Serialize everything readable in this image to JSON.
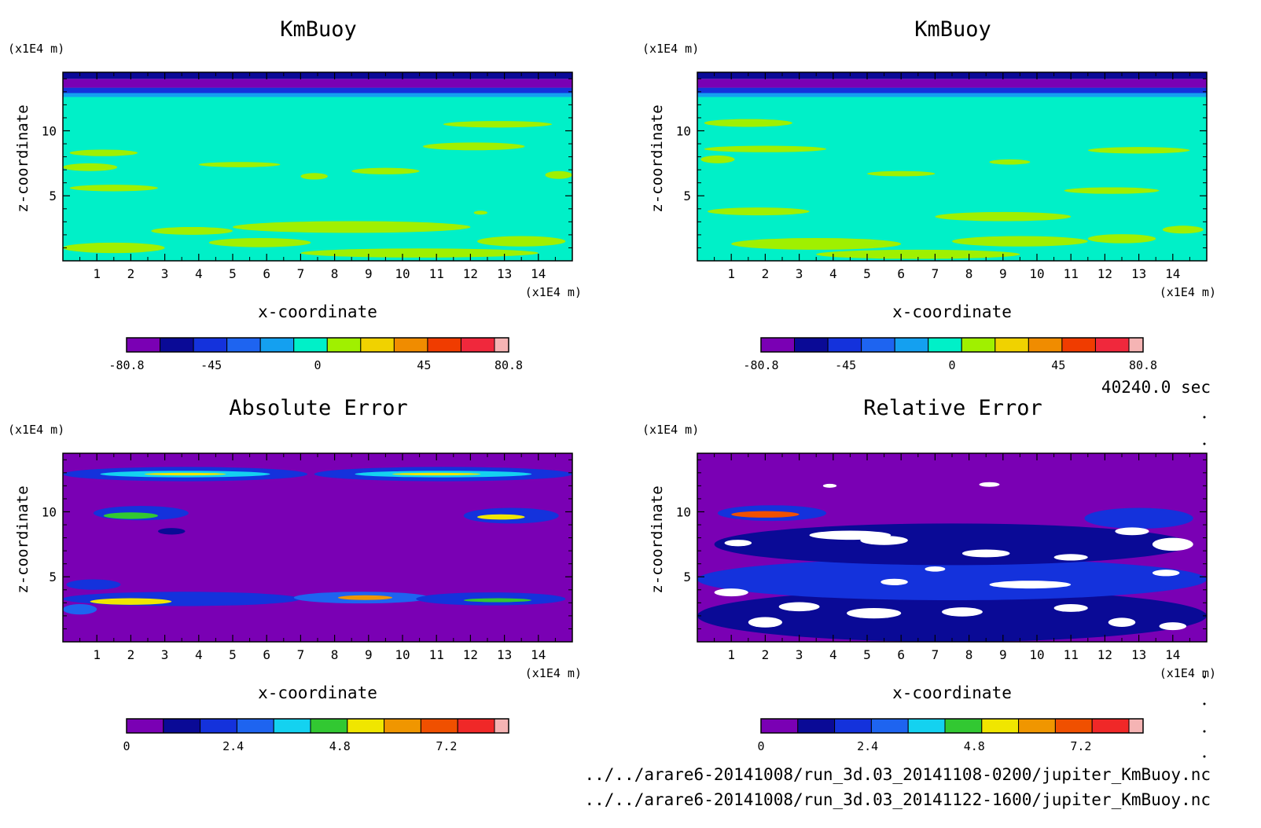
{
  "time_label": "40240.0 sec",
  "file_paths": [
    "../../arare6-20141008/run_3d.03_20141108-0200/jupiter_KmBuoy.nc",
    "../../arare6-20141008/run_3d.03_20141122-1600/jupiter_KmBuoy.nc"
  ],
  "chart_data": [
    {
      "type": "heatmap",
      "title": "KmBuoy",
      "xlabel": "x-coordinate",
      "ylabel": "z-coordinate",
      "x_unit": "(x1E4 m)",
      "y_unit": "(x1E4 m)",
      "xlim": [
        0,
        15
      ],
      "ylim": [
        0,
        14.5
      ],
      "x_ticks": [
        1,
        2,
        3,
        4,
        5,
        6,
        7,
        8,
        9,
        10,
        11,
        12,
        13,
        14
      ],
      "y_ticks": [
        5,
        10
      ],
      "colorbar": {
        "colors": [
          "#7a00b4",
          "#0a0a96",
          "#1432dc",
          "#1e64f0",
          "#14a0f0",
          "#00f0c8",
          "#a0f000",
          "#f0d200",
          "#f08c00",
          "#f03c00",
          "#f0283c",
          "#f5b4b4"
        ],
        "tick_labels": [
          "-80.8",
          "-45",
          "0",
          "45",
          "80.8"
        ],
        "tick_values": [
          -80.8,
          -45,
          0,
          45,
          80.8
        ],
        "range": [
          -80.8,
          80.8
        ]
      },
      "background_value": 0,
      "bands": [
        {
          "z0": 14.0,
          "z1": 14.5,
          "level": 1
        },
        {
          "z0": 13.3,
          "z1": 14.0,
          "level": 0
        },
        {
          "z0": 12.9,
          "z1": 13.3,
          "level": 2
        },
        {
          "z0": 12.6,
          "z1": 12.9,
          "level": 4
        }
      ],
      "blobs": [
        {
          "x": 1.2,
          "z": 8.3,
          "rx": 1.0,
          "rz": 0.25,
          "level": 6
        },
        {
          "x": 0.8,
          "z": 7.2,
          "rx": 0.8,
          "rz": 0.3,
          "level": 6
        },
        {
          "x": 1.5,
          "z": 5.6,
          "rx": 1.3,
          "rz": 0.25,
          "level": 6
        },
        {
          "x": 5.2,
          "z": 7.4,
          "rx": 1.2,
          "rz": 0.2,
          "level": 6
        },
        {
          "x": 9.5,
          "z": 6.9,
          "rx": 1.0,
          "rz": 0.25,
          "level": 6
        },
        {
          "x": 7.4,
          "z": 6.5,
          "rx": 0.4,
          "rz": 0.25,
          "level": 6
        },
        {
          "x": 12.8,
          "z": 10.5,
          "rx": 1.6,
          "rz": 0.25,
          "level": 6
        },
        {
          "x": 12.1,
          "z": 8.8,
          "rx": 1.5,
          "rz": 0.3,
          "level": 6
        },
        {
          "x": 14.6,
          "z": 6.6,
          "rx": 0.4,
          "rz": 0.3,
          "level": 6
        },
        {
          "x": 3.8,
          "z": 2.3,
          "rx": 1.2,
          "rz": 0.3,
          "level": 6
        },
        {
          "x": 8.5,
          "z": 2.6,
          "rx": 3.5,
          "rz": 0.45,
          "level": 6
        },
        {
          "x": 5.8,
          "z": 1.4,
          "rx": 1.5,
          "rz": 0.35,
          "level": 6
        },
        {
          "x": 1.5,
          "z": 1.0,
          "rx": 1.5,
          "rz": 0.4,
          "level": 6
        },
        {
          "x": 13.5,
          "z": 1.5,
          "rx": 1.3,
          "rz": 0.4,
          "level": 6
        },
        {
          "x": 10.5,
          "z": 0.6,
          "rx": 3.5,
          "rz": 0.35,
          "level": 6
        },
        {
          "x": 12.3,
          "z": 3.7,
          "rx": 0.2,
          "rz": 0.15,
          "level": 6
        }
      ]
    },
    {
      "type": "heatmap",
      "title": "KmBuoy",
      "xlabel": "x-coordinate",
      "ylabel": "z-coordinate",
      "x_unit": "(x1E4 m)",
      "y_unit": "(x1E4 m)",
      "xlim": [
        0,
        15
      ],
      "ylim": [
        0,
        14.5
      ],
      "x_ticks": [
        1,
        2,
        3,
        4,
        5,
        6,
        7,
        8,
        9,
        10,
        11,
        12,
        13,
        14
      ],
      "y_ticks": [
        5,
        10
      ],
      "colorbar": {
        "colors": [
          "#7a00b4",
          "#0a0a96",
          "#1432dc",
          "#1e64f0",
          "#14a0f0",
          "#00f0c8",
          "#a0f000",
          "#f0d200",
          "#f08c00",
          "#f03c00",
          "#f0283c",
          "#f5b4b4"
        ],
        "tick_labels": [
          "-80.8",
          "-45",
          "0",
          "45",
          "80.8"
        ],
        "tick_values": [
          -80.8,
          -45,
          0,
          45,
          80.8
        ],
        "range": [
          -80.8,
          80.8
        ]
      },
      "background_value": 0,
      "bands": [
        {
          "z0": 14.0,
          "z1": 14.5,
          "level": 1
        },
        {
          "z0": 13.3,
          "z1": 14.0,
          "level": 0
        },
        {
          "z0": 12.9,
          "z1": 13.3,
          "level": 2
        },
        {
          "z0": 12.6,
          "z1": 12.9,
          "level": 4
        }
      ],
      "blobs": [
        {
          "x": 1.5,
          "z": 10.6,
          "rx": 1.3,
          "rz": 0.3,
          "level": 6
        },
        {
          "x": 2.0,
          "z": 8.6,
          "rx": 1.8,
          "rz": 0.25,
          "level": 6
        },
        {
          "x": 0.6,
          "z": 7.8,
          "rx": 0.5,
          "rz": 0.3,
          "level": 6
        },
        {
          "x": 6.0,
          "z": 6.7,
          "rx": 1.0,
          "rz": 0.2,
          "level": 6
        },
        {
          "x": 9.2,
          "z": 7.6,
          "rx": 0.6,
          "rz": 0.2,
          "level": 6
        },
        {
          "x": 13.0,
          "z": 8.5,
          "rx": 1.5,
          "rz": 0.25,
          "level": 6
        },
        {
          "x": 12.2,
          "z": 5.4,
          "rx": 1.4,
          "rz": 0.25,
          "level": 6
        },
        {
          "x": 1.8,
          "z": 3.8,
          "rx": 1.5,
          "rz": 0.3,
          "level": 6
        },
        {
          "x": 9.0,
          "z": 3.4,
          "rx": 2.0,
          "rz": 0.35,
          "level": 6
        },
        {
          "x": 3.5,
          "z": 1.3,
          "rx": 2.5,
          "rz": 0.45,
          "level": 6
        },
        {
          "x": 9.5,
          "z": 1.5,
          "rx": 2.0,
          "rz": 0.4,
          "level": 6
        },
        {
          "x": 12.5,
          "z": 1.7,
          "rx": 1.0,
          "rz": 0.35,
          "level": 6
        },
        {
          "x": 14.3,
          "z": 2.4,
          "rx": 0.6,
          "rz": 0.3,
          "level": 6
        },
        {
          "x": 6.5,
          "z": 0.5,
          "rx": 3.0,
          "rz": 0.35,
          "level": 6
        }
      ]
    },
    {
      "type": "heatmap",
      "title": "Absolute Error",
      "xlabel": "x-coordinate",
      "ylabel": "z-coordinate",
      "x_unit": "(x1E4 m)",
      "y_unit": "(x1E4 m)",
      "xlim": [
        0,
        15
      ],
      "ylim": [
        0,
        14.5
      ],
      "x_ticks": [
        1,
        2,
        3,
        4,
        5,
        6,
        7,
        8,
        9,
        10,
        11,
        12,
        13,
        14
      ],
      "y_ticks": [
        5,
        10
      ],
      "colorbar": {
        "colors": [
          "#7a00b4",
          "#0a0a96",
          "#1432dc",
          "#1e64f0",
          "#14d2f0",
          "#32c832",
          "#f0e600",
          "#f09600",
          "#f05000",
          "#f02828",
          "#f5b4b4"
        ],
        "tick_labels": [
          "0",
          "2.4",
          "4.8",
          "7.2"
        ],
        "tick_values": [
          0,
          2.4,
          4.8,
          7.2
        ],
        "range": [
          0,
          8.6
        ]
      },
      "background_value": 0,
      "bands": [],
      "blobs": [
        {
          "x": 3.6,
          "z": 12.9,
          "rx": 3.6,
          "rz": 0.55,
          "level": 2
        },
        {
          "x": 3.6,
          "z": 12.9,
          "rx": 2.5,
          "rz": 0.25,
          "level": 4
        },
        {
          "x": 3.6,
          "z": 12.9,
          "rx": 1.2,
          "rz": 0.1,
          "level": 6
        },
        {
          "x": 11.2,
          "z": 12.9,
          "rx": 3.8,
          "rz": 0.55,
          "level": 2
        },
        {
          "x": 11.2,
          "z": 12.9,
          "rx": 2.6,
          "rz": 0.25,
          "level": 4
        },
        {
          "x": 11.0,
          "z": 12.9,
          "rx": 1.3,
          "rz": 0.1,
          "level": 6
        },
        {
          "x": 2.3,
          "z": 9.9,
          "rx": 1.4,
          "rz": 0.55,
          "level": 2
        },
        {
          "x": 2.0,
          "z": 9.7,
          "rx": 0.8,
          "rz": 0.25,
          "level": 5
        },
        {
          "x": 13.2,
          "z": 9.7,
          "rx": 1.4,
          "rz": 0.6,
          "level": 2
        },
        {
          "x": 12.9,
          "z": 9.6,
          "rx": 0.7,
          "rz": 0.2,
          "level": 6
        },
        {
          "x": 3.2,
          "z": 8.5,
          "rx": 0.4,
          "rz": 0.25,
          "level": 1
        },
        {
          "x": 3.5,
          "z": 3.3,
          "rx": 3.5,
          "rz": 0.55,
          "level": 2
        },
        {
          "x": 2.0,
          "z": 3.1,
          "rx": 1.2,
          "rz": 0.25,
          "level": 6
        },
        {
          "x": 0.9,
          "z": 4.4,
          "rx": 0.8,
          "rz": 0.4,
          "level": 2
        },
        {
          "x": 8.8,
          "z": 3.4,
          "rx": 2.0,
          "rz": 0.45,
          "level": 3
        },
        {
          "x": 8.9,
          "z": 3.4,
          "rx": 0.8,
          "rz": 0.18,
          "level": 7
        },
        {
          "x": 12.6,
          "z": 3.3,
          "rx": 2.2,
          "rz": 0.5,
          "level": 2
        },
        {
          "x": 12.8,
          "z": 3.2,
          "rx": 1.0,
          "rz": 0.15,
          "level": 5
        },
        {
          "x": 0.5,
          "z": 2.5,
          "rx": 0.5,
          "rz": 0.4,
          "level": 3
        }
      ]
    },
    {
      "type": "heatmap",
      "title": "Relative Error",
      "xlabel": "x-coordinate",
      "ylabel": "z-coordinate",
      "x_unit": "(x1E4 m)",
      "y_unit": "(x1E4 m)",
      "xlim": [
        0,
        15
      ],
      "ylim": [
        0,
        14.5
      ],
      "x_ticks": [
        1,
        2,
        3,
        4,
        5,
        6,
        7,
        8,
        9,
        10,
        11,
        12,
        13,
        14
      ],
      "y_ticks": [
        5,
        10
      ],
      "colorbar": {
        "colors": [
          "#7a00b4",
          "#0a0a96",
          "#1432dc",
          "#1e64f0",
          "#14d2f0",
          "#32c832",
          "#f0e600",
          "#f09600",
          "#f05000",
          "#f02828",
          "#f5b4b4"
        ],
        "tick_labels": [
          "0",
          "2.4",
          "4.8",
          "7.2"
        ],
        "tick_values": [
          0,
          2.4,
          4.8,
          7.2
        ],
        "range": [
          0,
          8.6
        ]
      },
      "background_value": 0,
      "bands": [],
      "blobs": [
        {
          "x": 7.5,
          "z": 2.0,
          "rx": 7.5,
          "rz": 2.0,
          "level": 1
        },
        {
          "x": 7.5,
          "z": 4.8,
          "rx": 7.5,
          "rz": 1.6,
          "level": 2
        },
        {
          "x": 7.5,
          "z": 7.5,
          "rx": 7.0,
          "rz": 1.6,
          "level": 1
        },
        {
          "x": 2.2,
          "z": 9.9,
          "rx": 1.6,
          "rz": 0.6,
          "level": 2
        },
        {
          "x": 2.0,
          "z": 9.8,
          "rx": 1.0,
          "rz": 0.25,
          "level": 8
        },
        {
          "x": 13.0,
          "z": 9.5,
          "rx": 1.6,
          "rz": 0.8,
          "level": 2
        },
        {
          "x": 4.5,
          "z": 8.2,
          "rx": 1.2,
          "rz": 0.35,
          "level": 11
        },
        {
          "x": 5.5,
          "z": 7.8,
          "rx": 0.7,
          "rz": 0.35,
          "level": 11
        },
        {
          "x": 1.2,
          "z": 7.6,
          "rx": 0.4,
          "rz": 0.25,
          "level": 11
        },
        {
          "x": 14.0,
          "z": 7.5,
          "rx": 0.6,
          "rz": 0.5,
          "level": 11
        },
        {
          "x": 12.8,
          "z": 8.5,
          "rx": 0.5,
          "rz": 0.3,
          "level": 11
        },
        {
          "x": 8.5,
          "z": 6.8,
          "rx": 0.7,
          "rz": 0.3,
          "level": 11
        },
        {
          "x": 11.0,
          "z": 6.5,
          "rx": 0.5,
          "rz": 0.25,
          "level": 11
        },
        {
          "x": 9.8,
          "z": 4.4,
          "rx": 1.2,
          "rz": 0.3,
          "level": 11
        },
        {
          "x": 5.8,
          "z": 4.6,
          "rx": 0.4,
          "rz": 0.25,
          "level": 11
        },
        {
          "x": 1.0,
          "z": 3.8,
          "rx": 0.5,
          "rz": 0.3,
          "level": 11
        },
        {
          "x": 3.0,
          "z": 2.7,
          "rx": 0.6,
          "rz": 0.35,
          "level": 11
        },
        {
          "x": 2.0,
          "z": 1.5,
          "rx": 0.5,
          "rz": 0.4,
          "level": 11
        },
        {
          "x": 5.2,
          "z": 2.2,
          "rx": 0.8,
          "rz": 0.4,
          "level": 11
        },
        {
          "x": 7.8,
          "z": 2.3,
          "rx": 0.6,
          "rz": 0.35,
          "level": 11
        },
        {
          "x": 11.0,
          "z": 2.6,
          "rx": 0.5,
          "rz": 0.3,
          "level": 11
        },
        {
          "x": 12.5,
          "z": 1.5,
          "rx": 0.4,
          "rz": 0.35,
          "level": 11
        },
        {
          "x": 14.0,
          "z": 1.2,
          "rx": 0.4,
          "rz": 0.3,
          "level": 11
        },
        {
          "x": 8.6,
          "z": 12.1,
          "rx": 0.3,
          "rz": 0.18,
          "level": 11
        },
        {
          "x": 3.9,
          "z": 12.0,
          "rx": 0.2,
          "rz": 0.15,
          "level": 11
        },
        {
          "x": 13.8,
          "z": 5.3,
          "rx": 0.4,
          "rz": 0.25,
          "level": 11
        },
        {
          "x": 7.0,
          "z": 5.6,
          "rx": 0.3,
          "rz": 0.2,
          "level": 11
        }
      ]
    }
  ]
}
